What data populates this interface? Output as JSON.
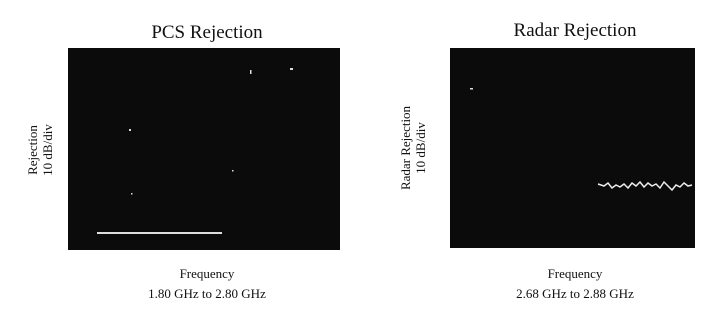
{
  "panels": [
    {
      "title": "PCS Rejection",
      "y_label": [
        "Rejection",
        "10 dB/div"
      ],
      "x_label": [
        "Frequency",
        "1.80 GHz to 2.80 GHz"
      ]
    },
    {
      "title": "Radar Rejection",
      "y_label": [
        "Radar Rejection",
        "10 dB/div"
      ],
      "x_label": [
        "Frequency",
        "2.68 GHz to 2.88 GHz"
      ]
    }
  ]
}
